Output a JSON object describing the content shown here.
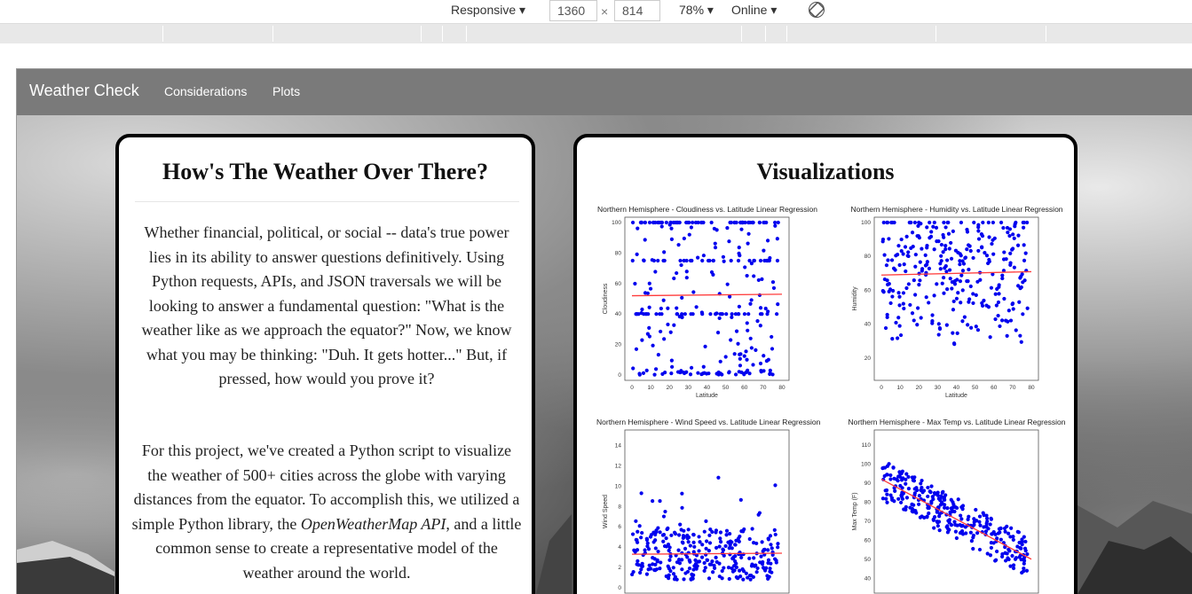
{
  "devtools": {
    "device": "Responsive",
    "width": "1360",
    "times": "×",
    "height": "814",
    "zoom": "78%",
    "network": "Online"
  },
  "nav": {
    "brand": "Weather Check",
    "links": [
      "Considerations",
      "Plots"
    ]
  },
  "intro": {
    "title": "How's The Weather Over There?",
    "p1": "Whether financial, political, or social -- data's true power lies in its ability to answer questions definitively. Using Python requests, APIs, and JSON traversals we will be looking to answer a fundamental question: \"What is the weather like as we approach the equator?\" Now, we know what you may be thinking: \"Duh. It gets hotter...\" But, if pressed, how would you prove it?",
    "p2_before": "For this project, we've created a Python script to visualize the weather of 500+ cities across the globe with varying distances from the equator. To accomplish this, we utilized a simple Python library, the ",
    "p2_em": "OpenWeatherMap API",
    "p2_after": ", and a little common sense to create a representative model of the weather around the world."
  },
  "visualizations": {
    "title": "Visualizations",
    "plots": [
      {
        "title": "Northern Hemisphere - Cloudiness vs. Latitude Linear Regression",
        "xlabel": "Latitude",
        "ylabel": "Cloudiness",
        "ylim": [
          0,
          100
        ],
        "yticks": [
          0,
          20,
          40,
          60,
          80,
          100
        ],
        "reg": [
          52,
          53
        ]
      },
      {
        "title": "Northern Hemisphere - Humidity vs. Latitude Linear Regression",
        "xlabel": "Latitude",
        "ylabel": "Humidity",
        "ylim": [
          10,
          100
        ],
        "yticks": [
          20,
          40,
          60,
          80,
          100
        ],
        "reg": [
          69,
          71
        ]
      },
      {
        "title": "Northern Hemisphere - Wind Speed vs. Latitude Linear Regression",
        "xlabel": "Latitude",
        "ylabel": "Wind Speed",
        "ylim": [
          0,
          15
        ],
        "yticks": [
          0,
          2,
          4,
          6,
          8,
          10,
          12,
          14
        ],
        "reg": [
          3.3,
          3.4
        ]
      },
      {
        "title": "Northern Hemisphere - Max Temp vs. Latitude Linear Regression",
        "xlabel": "Latitude",
        "ylabel": "Max Temp (F)",
        "ylim": [
          35,
          115
        ],
        "yticks": [
          40,
          50,
          60,
          70,
          80,
          90,
          100,
          110
        ],
        "reg": [
          92,
          50
        ]
      }
    ],
    "xticks": [
      0,
      10,
      20,
      30,
      40,
      50,
      60,
      70,
      80
    ],
    "colors": {
      "points": "#0000ee",
      "line": "#ff3b3b"
    }
  }
}
